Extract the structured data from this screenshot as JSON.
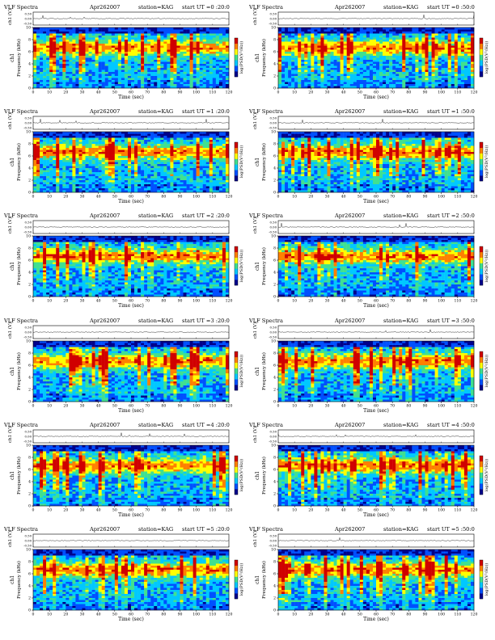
{
  "page": {
    "header_title": "VLF Spectra",
    "header_date": "Apr262007",
    "header_station": "station=KAG",
    "header_ut_prefix": "start  UT ="
  },
  "labels": {
    "ch1_axis": "ch1 (V)",
    "freq_axis": "Frequency (kHz)",
    "ch1_side": "ch1",
    "time_axis": "Time (sec)",
    "colorbar": "log(PSD(V²/Hz))"
  },
  "colors": {
    "spectrogram_scale": [
      "#00008b",
      "#0050ff",
      "#00c8ff",
      "#40e090",
      "#ffff00",
      "#ff8000",
      "#d00000"
    ]
  },
  "chart_data": [
    {
      "type": "heatmap",
      "start_ut": "0 :20:0",
      "x": {
        "range": [
          0,
          120
        ],
        "ticks": [
          0,
          10,
          20,
          30,
          40,
          50,
          60,
          70,
          80,
          90,
          100,
          110,
          120
        ],
        "label": "Time (sec)"
      },
      "y": {
        "range": [
          0,
          10
        ],
        "ticks": [
          0,
          2,
          4,
          6,
          8,
          10
        ],
        "label": "Frequency (kHz)"
      },
      "top_trace": {
        "label": "ch1 (V)",
        "ticks": [
          "0.50",
          "0.00",
          "-0.50"
        ]
      }
    },
    {
      "type": "heatmap",
      "start_ut": "0 :50:0",
      "x": {
        "range": [
          0,
          120
        ],
        "ticks": [
          0,
          10,
          20,
          30,
          40,
          50,
          60,
          70,
          80,
          90,
          100,
          110,
          120
        ],
        "label": "Time (sec)"
      },
      "y": {
        "range": [
          0,
          10
        ],
        "ticks": [
          0,
          2,
          4,
          6,
          8,
          10
        ],
        "label": "Frequency (kHz)"
      },
      "top_trace": {
        "label": "ch1 (V)",
        "ticks": [
          "0.50",
          "0.00",
          "-0.50"
        ]
      }
    },
    {
      "type": "heatmap",
      "start_ut": "1 :20:0",
      "x": {
        "range": [
          0,
          120
        ],
        "ticks": [
          0,
          10,
          20,
          30,
          40,
          50,
          60,
          70,
          80,
          90,
          100,
          110,
          120
        ],
        "label": "Time (sec)"
      },
      "y": {
        "range": [
          0,
          10
        ],
        "ticks": [
          0,
          2,
          4,
          6,
          8,
          10
        ],
        "label": "Frequency (kHz)"
      },
      "top_trace": {
        "label": "ch1 (V)",
        "ticks": [
          "0.50",
          "0.00",
          "-0.50"
        ]
      }
    },
    {
      "type": "heatmap",
      "start_ut": "1 :50:0",
      "x": {
        "range": [
          0,
          120
        ],
        "ticks": [
          0,
          10,
          20,
          30,
          40,
          50,
          60,
          70,
          80,
          90,
          100,
          110,
          120
        ],
        "label": "Time (sec)"
      },
      "y": {
        "range": [
          0,
          10
        ],
        "ticks": [
          0,
          2,
          4,
          6,
          8,
          10
        ],
        "label": "Frequency (kHz)"
      },
      "top_trace": {
        "label": "ch1 (V)",
        "ticks": [
          "0.50",
          "0.00",
          "-0.50"
        ]
      }
    },
    {
      "type": "heatmap",
      "start_ut": "2 :20:0",
      "x": {
        "range": [
          0,
          120
        ],
        "ticks": [
          0,
          10,
          20,
          30,
          40,
          50,
          60,
          70,
          80,
          90,
          100,
          110,
          120
        ],
        "label": "Time (sec)"
      },
      "y": {
        "range": [
          0,
          10
        ],
        "ticks": [
          0,
          2,
          4,
          6,
          8,
          10
        ],
        "label": "Frequency (kHz)"
      },
      "top_trace": {
        "label": "ch1 (V)",
        "ticks": [
          "0.50",
          "0.00",
          "-0.50"
        ]
      }
    },
    {
      "type": "heatmap",
      "start_ut": "2 :50:0",
      "x": {
        "range": [
          0,
          120
        ],
        "ticks": [
          0,
          10,
          20,
          30,
          40,
          50,
          60,
          70,
          80,
          90,
          100,
          110,
          120
        ],
        "label": "Time (sec)"
      },
      "y": {
        "range": [
          0,
          10
        ],
        "ticks": [
          0,
          2,
          4,
          6,
          8,
          10
        ],
        "label": "Frequency (kHz)"
      },
      "top_trace": {
        "label": "ch1 (V)",
        "ticks": [
          "0.50",
          "0.00",
          "-0.50"
        ]
      }
    },
    {
      "type": "heatmap",
      "start_ut": "3 :20:0",
      "x": {
        "range": [
          0,
          120
        ],
        "ticks": [
          0,
          10,
          20,
          30,
          40,
          50,
          60,
          70,
          80,
          90,
          100,
          110,
          120
        ],
        "label": "Time (sec)"
      },
      "y": {
        "range": [
          0,
          10
        ],
        "ticks": [
          0,
          2,
          4,
          6,
          8,
          10
        ],
        "label": "Frequency (kHz)"
      },
      "top_trace": {
        "label": "ch1 (V)",
        "ticks": [
          "0.50",
          "0.00",
          "-0.50"
        ]
      }
    },
    {
      "type": "heatmap",
      "start_ut": "3 :50:0",
      "x": {
        "range": [
          0,
          120
        ],
        "ticks": [
          0,
          10,
          20,
          30,
          40,
          50,
          60,
          70,
          80,
          90,
          100,
          110,
          120
        ],
        "label": "Time (sec)"
      },
      "y": {
        "range": [
          0,
          10
        ],
        "ticks": [
          0,
          2,
          4,
          6,
          8,
          10
        ],
        "label": "Frequency (kHz)"
      },
      "top_trace": {
        "label": "ch1 (V)",
        "ticks": [
          "0.50",
          "0.00",
          "-0.50"
        ]
      }
    },
    {
      "type": "heatmap",
      "start_ut": "4 :20:0",
      "x": {
        "range": [
          0,
          120
        ],
        "ticks": [
          0,
          10,
          20,
          30,
          40,
          50,
          60,
          70,
          80,
          90,
          100,
          110,
          120
        ],
        "label": "Time (sec)"
      },
      "y": {
        "range": [
          0,
          10
        ],
        "ticks": [
          0,
          2,
          4,
          6,
          8,
          10
        ],
        "label": "Frequency (kHz)"
      },
      "top_trace": {
        "label": "ch1 (V)",
        "ticks": [
          "0.50",
          "0.00",
          "-0.50"
        ]
      }
    },
    {
      "type": "heatmap",
      "start_ut": "4 :50:0",
      "x": {
        "range": [
          0,
          120
        ],
        "ticks": [
          0,
          10,
          20,
          30,
          40,
          50,
          60,
          70,
          80,
          90,
          100,
          110,
          120
        ],
        "label": "Time (sec)"
      },
      "y": {
        "range": [
          0,
          10
        ],
        "ticks": [
          0,
          2,
          4,
          6,
          8,
          10
        ],
        "label": "Frequency (kHz)"
      },
      "top_trace": {
        "label": "ch1 (V)",
        "ticks": [
          "0.50",
          "0.00",
          "-0.50"
        ]
      }
    },
    {
      "type": "heatmap",
      "start_ut": "5 :20:0",
      "x": {
        "range": [
          0,
          120
        ],
        "ticks": [
          0,
          10,
          20,
          30,
          40,
          50,
          60,
          70,
          80,
          90,
          100,
          110,
          120
        ],
        "label": "Time (sec)"
      },
      "y": {
        "range": [
          0,
          10
        ],
        "ticks": [
          0,
          2,
          4,
          6,
          8,
          10
        ],
        "label": "Frequency (kHz)"
      },
      "top_trace": {
        "label": "ch1 (V)",
        "ticks": [
          "0.50",
          "0.00",
          "-0.50"
        ]
      }
    },
    {
      "type": "heatmap",
      "start_ut": "5 :50:0",
      "x": {
        "range": [
          0,
          120
        ],
        "ticks": [
          0,
          10,
          20,
          30,
          40,
          50,
          60,
          70,
          80,
          90,
          100,
          110,
          120
        ],
        "label": "Time (sec)"
      },
      "y": {
        "range": [
          0,
          10
        ],
        "ticks": [
          0,
          2,
          4,
          6,
          8,
          10
        ],
        "label": "Frequency (kHz)"
      },
      "top_trace": {
        "label": "ch1 (V)",
        "ticks": [
          "0.50",
          "0.00",
          "-0.50"
        ]
      }
    }
  ]
}
